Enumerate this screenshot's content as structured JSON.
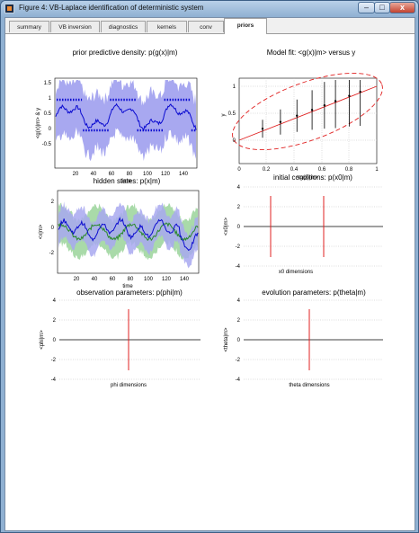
{
  "window": {
    "title": "Figure 4: VB-Laplace identification of deterministic system",
    "minimize_glyph": "–",
    "maximize_glyph": "□",
    "close_glyph": "x"
  },
  "tabs": [
    {
      "label": "summary",
      "active": false
    },
    {
      "label": "VB inversion",
      "active": false
    },
    {
      "label": "diagnostics",
      "active": false
    },
    {
      "label": "kernels",
      "active": false
    },
    {
      "label": "conv",
      "active": false
    },
    {
      "label": "priors",
      "active": true
    }
  ],
  "colors": {
    "blue_band": "#a8a8f0",
    "blue_line": "#0b0bd0",
    "green": "#2a8a2a",
    "green_band": "#9ad49a",
    "red": "#e02020"
  },
  "panels": {
    "prior_predictive": {
      "title": "prior predictive density: p(g(x)|m)",
      "ylabel": "<g(x)|m> & y",
      "xlabel": "time",
      "xticks": [
        "20",
        "40",
        "60",
        "80",
        "100",
        "120",
        "140"
      ],
      "yticks": [
        "1.5",
        "1",
        "0.5",
        "0",
        "-0.5"
      ]
    },
    "model_fit": {
      "title": "Model fit: <g(x)|m> versus y",
      "ylabel": "y",
      "xlabel": "<g(x)|m>",
      "xticks": [
        "0",
        "0.2",
        "0.4",
        "0.6",
        "0.8",
        "1"
      ],
      "yticks": [
        "1",
        "0.5",
        "0"
      ]
    },
    "hidden_states": {
      "title": "hidden states: p(x|m)",
      "ylabel": "<x|m>",
      "xlabel": "time",
      "xticks": [
        "20",
        "40",
        "60",
        "80",
        "100",
        "120",
        "140"
      ],
      "yticks": [
        "2",
        "0",
        "-2"
      ]
    },
    "initial_conditions": {
      "title": "initial conditions: p(x0|m)",
      "ylabel": "<x0|m>",
      "xlabel": "x0 dimensions",
      "yticks": [
        "4",
        "2",
        "0",
        "-2",
        "-4"
      ]
    },
    "observation_params": {
      "title": "observation parameters: p(phi|m)",
      "ylabel": "<phi|m>",
      "xlabel": "phi dimensions",
      "yticks": [
        "4",
        "2",
        "0",
        "-2",
        "-4"
      ]
    },
    "evolution_params": {
      "title": "evolution parameters: p(theta|m)",
      "ylabel": "<theta|m>",
      "xlabel": "theta dimensions",
      "yticks": [
        "4",
        "2",
        "0",
        "-2",
        "-4"
      ]
    }
  }
}
